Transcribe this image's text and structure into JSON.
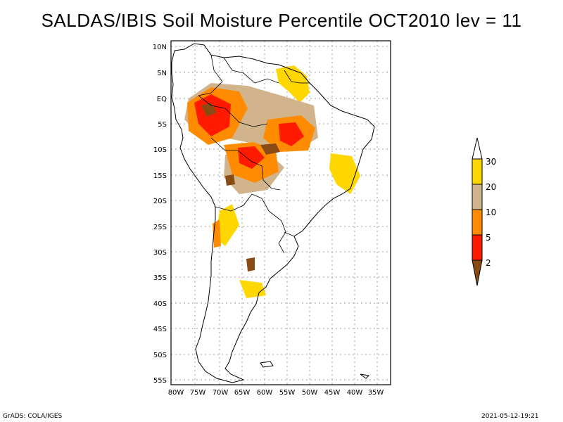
{
  "title": "SALDAS/IBIS Soil Moisture Percentile OCT2010 lev = 11",
  "map": {
    "lat_labels": [
      "10N",
      "5N",
      "EQ",
      "5S",
      "10S",
      "15S",
      "20S",
      "25S",
      "30S",
      "35S",
      "40S",
      "45S",
      "50S",
      "55S"
    ],
    "lon_labels": [
      "80W",
      "75W",
      "70W",
      "65W",
      "60W",
      "55W",
      "50W",
      "45W",
      "40W",
      "35W"
    ],
    "lat_range": [
      -56,
      11
    ],
    "lon_range": [
      -81,
      -34
    ]
  },
  "legend": {
    "labels": [
      "2",
      "5",
      "10",
      "20",
      "30"
    ],
    "colors": {
      "lt2": "#8a4a14",
      "2to5": "#ff1a00",
      "5to10": "#ff8c00",
      "10to20": "#d2b48c",
      "20to30": "#ffd700",
      "gt30": "#ffffff"
    }
  },
  "footer": {
    "left": "GrADS: COLA/IGES",
    "right": "2021-05-12-19:21"
  }
}
